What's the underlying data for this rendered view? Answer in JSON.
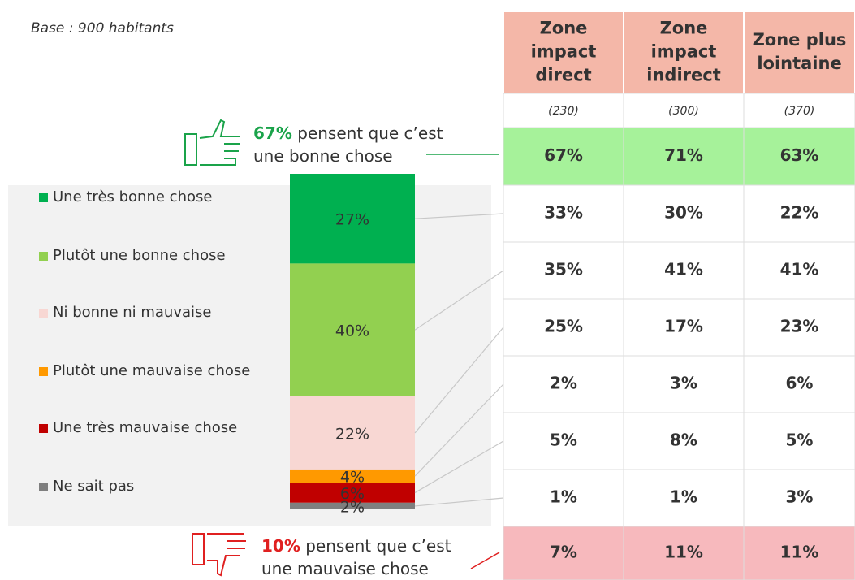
{
  "base": "Base : 900 habitants",
  "chart_data": {
    "type": "stacked-bar",
    "series": [
      {
        "name": "Une très bonne chose",
        "color": "#00b050",
        "label_color": "#ffffff",
        "values": [
          27
        ],
        "value_labels": [
          "27%"
        ]
      },
      {
        "name": "Plutôt une bonne chose",
        "color": "#92d050",
        "label_color": "#333333",
        "values": [
          40
        ],
        "value_labels": [
          "40%"
        ]
      },
      {
        "name": "Ni bonne ni mauvaise",
        "color": "#f8d7d3",
        "label_color": "#333333",
        "values": [
          22
        ],
        "value_labels": [
          "22%"
        ]
      },
      {
        "name": "Plutôt une mauvaise chose",
        "color": "#ff9900",
        "label_color": "#333333",
        "values": [
          4
        ],
        "value_labels": [
          "4%"
        ]
      },
      {
        "name": "Une très mauvaise chose",
        "color": "#c00000",
        "label_color": "#ffffff",
        "values": [
          6
        ],
        "value_labels": [
          "6%"
        ]
      },
      {
        "name": "Ne sait pas",
        "color": "#7f7f7f",
        "label_color": "#333333",
        "values": [
          2
        ],
        "value_labels": [
          "2%"
        ]
      }
    ]
  },
  "good_summary": {
    "pct": "67%",
    "lines": [
      "pensent que c’est",
      "une bonne chose"
    ],
    "color": "#1aa34a"
  },
  "bad_summary": {
    "pct": "10%",
    "lines": [
      "pensent que c’est",
      "une mauvaise chose"
    ],
    "color": "#e02020"
  },
  "table": {
    "header": [
      [
        "Zone",
        "impact",
        "direct"
      ],
      [
        "Zone",
        "impact",
        "indirect"
      ],
      [
        "Zone plus",
        "lointaine"
      ]
    ],
    "counts": [
      "(230)",
      "(300)",
      "(370)"
    ],
    "rows": [
      {
        "background": "#a6f29a",
        "cells": [
          "67%",
          "71%",
          "63%"
        ],
        "colors": [
          "#333333",
          "#1aa34a",
          "#e02020"
        ]
      },
      {
        "background": "#ffffff",
        "cells": [
          "33%",
          "30%",
          "22%"
        ],
        "colors": [
          "#1aa34a",
          "#333333",
          "#e02020"
        ]
      },
      {
        "background": "#ffffff",
        "cells": [
          "35%",
          "41%",
          "41%"
        ],
        "colors": [
          "#333333",
          "#333333",
          "#333333"
        ]
      },
      {
        "background": "#ffffff",
        "cells": [
          "25%",
          "17%",
          "23%"
        ],
        "colors": [
          "#333333",
          "#e02020",
          "#333333"
        ]
      },
      {
        "background": "#ffffff",
        "cells": [
          "2%",
          "3%",
          "6%"
        ],
        "colors": [
          "#e02020",
          "#333333",
          "#1aa34a"
        ]
      },
      {
        "background": "#ffffff",
        "cells": [
          "5%",
          "8%",
          "5%"
        ],
        "colors": [
          "#333333",
          "#333333",
          "#333333"
        ]
      },
      {
        "background": "#ffffff",
        "cells": [
          "1%",
          "1%",
          "3%"
        ],
        "colors": [
          "#333333",
          "#333333",
          "#1aa34a"
        ]
      },
      {
        "background": "#f7b9bd",
        "cells": [
          "7%",
          "11%",
          "11%"
        ],
        "colors": [
          "#e02020",
          "#333333",
          "#333333"
        ]
      }
    ]
  }
}
